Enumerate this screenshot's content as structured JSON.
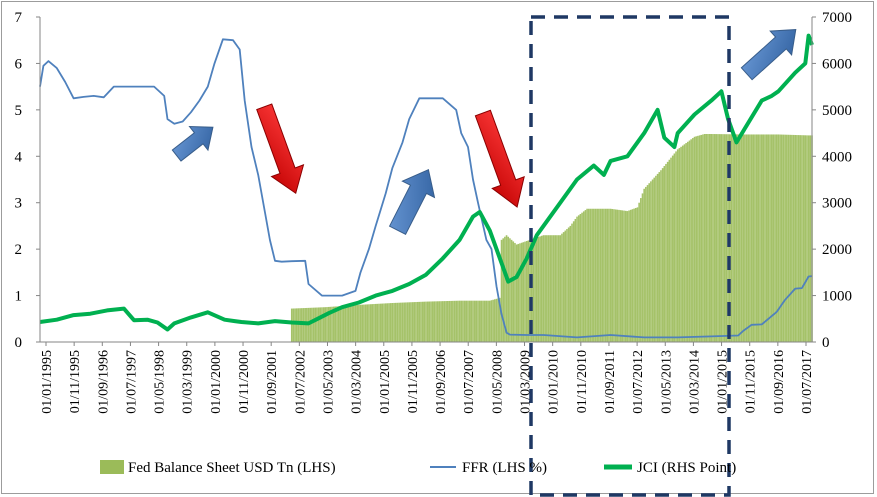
{
  "chart_data": {
    "type": "line",
    "title": "",
    "xlabel": "",
    "ylabel_left": "",
    "ylabel_right": "",
    "y_left_range": [
      0,
      7
    ],
    "y_left_ticks": [
      "0",
      "1",
      "2",
      "3",
      "4",
      "5",
      "6",
      "7"
    ],
    "y_right_range": [
      0,
      7000
    ],
    "y_right_ticks": [
      "0",
      "1000",
      "2000",
      "3000",
      "4000",
      "5000",
      "6000",
      "7000"
    ],
    "x_range": [
      1995.0,
      2018.0
    ],
    "x_tick_labels": [
      "01/01/1995",
      "01/11/1995",
      "01/09/1996",
      "01/07/1997",
      "01/05/1998",
      "01/03/1999",
      "01/01/2000",
      "01/11/2000",
      "01/09/2001",
      "01/07/2002",
      "01/05/2003",
      "01/03/2004",
      "01/01/2005",
      "01/11/2005",
      "01/09/2006",
      "01/07/2007",
      "01/05/2008",
      "01/03/2009",
      "01/01/2010",
      "01/11/2010",
      "01/09/2011",
      "01/07/2012",
      "01/05/2013",
      "01/03/2014",
      "01/01/2015",
      "01/11/2015",
      "01/09/2016",
      "01/07/2017"
    ],
    "gridlines": false,
    "legend_position": "bottom",
    "series": [
      {
        "name": "Fed Balance Sheet USD Tn (LHS)",
        "type": "bar",
        "axis": "left",
        "color": "#9bbb59",
        "x": [
          1995.0,
          2002.49,
          2002.5,
          2003.5,
          2004.5,
          2005.5,
          2006.5,
          2007.5,
          2008.4,
          2008.7,
          2008.75,
          2008.9,
          2009.2,
          2010.0,
          2010.5,
          2010.8,
          2011.0,
          2011.3,
          2011.5,
          2012.0,
          2012.5,
          2012.8,
          2013.0,
          2013.5,
          2014.0,
          2014.5,
          2014.8,
          2015.0,
          2016.0,
          2017.0,
          2017.9
        ],
        "values": [
          0,
          0,
          0.72,
          0.75,
          0.8,
          0.84,
          0.87,
          0.89,
          0.89,
          0.95,
          2.2,
          2.3,
          2.1,
          2.3,
          2.3,
          2.5,
          2.7,
          2.87,
          2.87,
          2.87,
          2.82,
          2.9,
          3.3,
          3.7,
          4.15,
          4.42,
          4.48,
          4.48,
          4.47,
          4.47,
          4.45
        ]
      },
      {
        "name": "FFR (LHS %)",
        "type": "line",
        "axis": "left",
        "color": "#4f81bd",
        "x": [
          1995.0,
          1995.1,
          1995.25,
          1995.5,
          1995.75,
          1996.0,
          1996.3,
          1996.6,
          1996.9,
          1997.2,
          1997.6,
          1998.0,
          1998.4,
          1998.7,
          1998.8,
          1999.0,
          1999.25,
          1999.5,
          1999.75,
          2000.0,
          2000.2,
          2000.45,
          2000.75,
          2000.95,
          2001.1,
          2001.3,
          2001.5,
          2001.7,
          2001.85,
          2002.0,
          2002.2,
          2002.5,
          2002.9,
          2003.0,
          2003.4,
          2003.5,
          2003.8,
          2004.0,
          2004.4,
          2004.55,
          2004.8,
          2005.0,
          2005.3,
          2005.5,
          2005.8,
          2006.0,
          2006.3,
          2006.45,
          2006.8,
          2007.0,
          2007.4,
          2007.55,
          2007.75,
          2007.9,
          2008.05,
          2008.3,
          2008.45,
          2008.6,
          2008.75,
          2008.9,
          2009.0,
          2009.5,
          2010.0,
          2011.0,
          2012.0,
          2013.0,
          2014.0,
          2015.0,
          2015.8,
          2015.95,
          2016.2,
          2016.5,
          2016.95,
          2017.2,
          2017.5,
          2017.7,
          2017.9,
          2018.0
        ],
        "values": [
          5.5,
          5.95,
          6.05,
          5.9,
          5.6,
          5.25,
          5.28,
          5.3,
          5.27,
          5.5,
          5.5,
          5.5,
          5.5,
          5.3,
          4.8,
          4.7,
          4.75,
          4.95,
          5.2,
          5.5,
          6.0,
          6.52,
          6.5,
          6.3,
          5.2,
          4.2,
          3.6,
          2.8,
          2.2,
          1.75,
          1.73,
          1.74,
          1.75,
          1.25,
          1.0,
          1.0,
          1.0,
          1.0,
          1.1,
          1.5,
          2.0,
          2.5,
          3.2,
          3.75,
          4.3,
          4.8,
          5.25,
          5.25,
          5.25,
          5.25,
          5.0,
          4.5,
          4.2,
          3.5,
          3.0,
          2.2,
          2.0,
          1.2,
          0.6,
          0.2,
          0.16,
          0.15,
          0.15,
          0.1,
          0.15,
          0.1,
          0.1,
          0.12,
          0.14,
          0.24,
          0.37,
          0.38,
          0.65,
          0.91,
          1.15,
          1.16,
          1.41,
          1.42
        ]
      },
      {
        "name": "JCI (RHS Point)",
        "type": "line",
        "axis": "right",
        "color": "#00b050",
        "x": [
          1995.0,
          1995.5,
          1996.0,
          1996.5,
          1997.0,
          1997.5,
          1997.8,
          1998.2,
          1998.5,
          1998.8,
          1999.0,
          1999.5,
          2000.0,
          2000.5,
          2000.8,
          2001.0,
          2001.5,
          2002.0,
          2002.5,
          2003.0,
          2003.3,
          2003.6,
          2004.0,
          2004.5,
          2005.0,
          2005.5,
          2006.0,
          2006.5,
          2007.0,
          2007.5,
          2007.9,
          2008.1,
          2008.4,
          2008.6,
          2008.8,
          2008.95,
          2009.2,
          2009.5,
          2009.8,
          2010.0,
          2010.5,
          2011.0,
          2011.5,
          2011.8,
          2012.0,
          2012.5,
          2013.0,
          2013.4,
          2013.6,
          2013.9,
          2014.0,
          2014.5,
          2015.0,
          2015.3,
          2015.5,
          2015.75,
          2016.0,
          2016.5,
          2016.8,
          2017.0,
          2017.5,
          2017.8,
          2017.9,
          2018.0
        ],
        "values": [
          430,
          480,
          580,
          610,
          680,
          720,
          470,
          480,
          420,
          270,
          400,
          530,
          640,
          480,
          450,
          430,
          400,
          450,
          420,
          400,
          510,
          620,
          750,
          850,
          1000,
          1100,
          1250,
          1450,
          1800,
          2200,
          2700,
          2800,
          2400,
          2000,
          1600,
          1300,
          1400,
          1800,
          2300,
          2500,
          3000,
          3500,
          3800,
          3600,
          3900,
          4000,
          4500,
          5000,
          4400,
          4200,
          4500,
          4900,
          5200,
          5400,
          4800,
          4300,
          4600,
          5200,
          5300,
          5400,
          5800,
          6000,
          6600,
          6400
        ]
      }
    ],
    "annotations": [
      {
        "type": "arrow",
        "direction": "up",
        "color": "#4f81bd",
        "near": "1999-2000 FFR rise"
      },
      {
        "type": "arrow",
        "direction": "down",
        "color": "#ff0000",
        "near": "2001-2002 FFR fall"
      },
      {
        "type": "arrow",
        "direction": "up",
        "color": "#4f81bd",
        "near": "2005-2006 FFR rise"
      },
      {
        "type": "arrow",
        "direction": "down",
        "color": "#ff0000",
        "near": "2008 FFR fall"
      },
      {
        "type": "arrow",
        "direction": "up",
        "color": "#4f81bd",
        "near": "2017 top-right"
      },
      {
        "type": "dashed-box",
        "color": "#1f3864",
        "near": "2009-2015 QE period"
      }
    ]
  }
}
